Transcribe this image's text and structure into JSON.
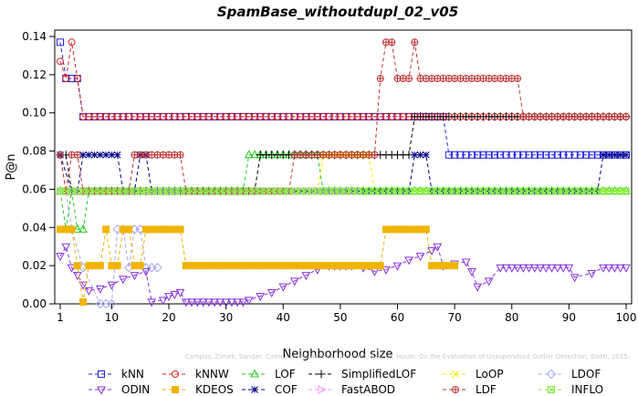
{
  "chart_data": {
    "type": "line",
    "title": "SpamBase_withoutdupl_02_v05",
    "xlabel": "Neighborhood size",
    "ylabel": "P@n",
    "xlim": [
      1,
      100
    ],
    "ylim": [
      0,
      0.14
    ],
    "xticks": [
      1,
      10,
      20,
      30,
      40,
      50,
      60,
      70,
      80,
      90,
      100
    ],
    "yticks": [
      0,
      0.02,
      0.04,
      0.06,
      0.08,
      0.1,
      0.12,
      0.14
    ],
    "ytick_labels": [
      "0.00",
      "0.02",
      "0.04",
      "0.06",
      "0.08",
      "0.10",
      "0.12",
      "0.14"
    ],
    "grid": false,
    "legend_position": "bottom",
    "watermark": "Campos, Zimek, Sander, Campello, Micenkova, Schubert, Assent, Houle: On the Evaluation of Unsupervised Outlier Detection, DAMI, 2015.",
    "series": [
      {
        "name": "kNN",
        "color": "#2222dd",
        "marker": "square",
        "points": [
          [
            1,
            0.137
          ],
          [
            2,
            0.118
          ],
          [
            3,
            0.118
          ],
          [
            4,
            0.118
          ],
          [
            5,
            0.098
          ],
          [
            68,
            0.098
          ],
          [
            69,
            0.078
          ],
          [
            99,
            0.078
          ],
          [
            100,
            0.078
          ]
        ]
      },
      {
        "name": "kNNW",
        "color": "#dd2222",
        "marker": "circle",
        "points": [
          [
            1,
            0.127
          ],
          [
            2,
            0.118
          ],
          [
            3,
            0.137
          ],
          [
            4,
            0.118
          ],
          [
            5,
            0.098
          ],
          [
            100,
            0.098
          ]
        ]
      },
      {
        "name": "LOF",
        "color": "#22cc22",
        "marker": "triangle-up",
        "points": [
          [
            1,
            0.059
          ],
          [
            2,
            0.039
          ],
          [
            3,
            0.059
          ],
          [
            4,
            0.039
          ],
          [
            5,
            0.039
          ],
          [
            6,
            0.059
          ],
          [
            33,
            0.059
          ],
          [
            34,
            0.078
          ],
          [
            46,
            0.078
          ],
          [
            47,
            0.059
          ],
          [
            100,
            0.059
          ]
        ]
      },
      {
        "name": "SimplifiedLOF",
        "color": "#000000",
        "marker": "plus",
        "points": [
          [
            1,
            0.078
          ],
          [
            2,
            0.078
          ],
          [
            3,
            0.059
          ],
          [
            35,
            0.059
          ],
          [
            36,
            0.078
          ],
          [
            62,
            0.078
          ],
          [
            63,
            0.098
          ],
          [
            100,
            0.098
          ]
        ]
      },
      {
        "name": "LoOP",
        "color": "#eeee00",
        "marker": "cross",
        "points": [
          [
            1,
            0.078
          ],
          [
            2,
            0.059
          ],
          [
            46,
            0.059
          ],
          [
            47,
            0.078
          ],
          [
            55,
            0.078
          ],
          [
            56,
            0.059
          ],
          [
            100,
            0.059
          ]
        ]
      },
      {
        "name": "LDOF",
        "color": "#aaaaee",
        "marker": "diamond",
        "points": [
          [
            1,
            0.078
          ],
          [
            3,
            0.039
          ],
          [
            5,
            0.019
          ],
          [
            8,
            0.0
          ],
          [
            10,
            0.0
          ],
          [
            11,
            0.039
          ],
          [
            12,
            0.039
          ],
          [
            13,
            0.019
          ],
          [
            14,
            0.039
          ],
          [
            15,
            0.039
          ],
          [
            16,
            0.019
          ],
          [
            18,
            0.019
          ]
        ]
      },
      {
        "name": "ODIN",
        "color": "#8833dd",
        "marker": "triangle-down",
        "points": [
          [
            1,
            0.025
          ],
          [
            2,
            0.03
          ],
          [
            3,
            0.019
          ],
          [
            4,
            0.015
          ],
          [
            5,
            0.01
          ],
          [
            6,
            0.007
          ],
          [
            8,
            0.008
          ],
          [
            10,
            0.01
          ],
          [
            12,
            0.013
          ],
          [
            14,
            0.015
          ],
          [
            16,
            0.017
          ],
          [
            17,
            0.001
          ],
          [
            19,
            0.002
          ],
          [
            20,
            0.004
          ],
          [
            21,
            0.005
          ],
          [
            22,
            0.006
          ],
          [
            23,
            0.001
          ],
          [
            33,
            0.001
          ],
          [
            34,
            0.002
          ],
          [
            36,
            0.004
          ],
          [
            38,
            0.006
          ],
          [
            40,
            0.009
          ],
          [
            42,
            0.012
          ],
          [
            44,
            0.015
          ],
          [
            46,
            0.018
          ],
          [
            48,
            0.02
          ],
          [
            52,
            0.02
          ],
          [
            54,
            0.019
          ],
          [
            56,
            0.017
          ],
          [
            58,
            0.018
          ],
          [
            60,
            0.02
          ],
          [
            62,
            0.023
          ],
          [
            64,
            0.025
          ],
          [
            66,
            0.028
          ],
          [
            67,
            0.03
          ],
          [
            68,
            0.02
          ],
          [
            70,
            0.021
          ],
          [
            72,
            0.022
          ],
          [
            73,
            0.017
          ],
          [
            74,
            0.009
          ],
          [
            76,
            0.012
          ],
          [
            78,
            0.019
          ],
          [
            90,
            0.019
          ],
          [
            91,
            0.014
          ],
          [
            94,
            0.016
          ],
          [
            96,
            0.019
          ],
          [
            100,
            0.019
          ]
        ]
      },
      {
        "name": "KDEOS",
        "color": "#f0b400",
        "marker": "square-filled",
        "points": [
          [
            1,
            0.039
          ],
          [
            2,
            0.039
          ],
          [
            3,
            0.039
          ],
          [
            4,
            0.02
          ],
          [
            5,
            0.001
          ],
          [
            6,
            0.02
          ],
          [
            7,
            0.02
          ],
          [
            8,
            0.02
          ],
          [
            9,
            0.039
          ],
          [
            10,
            0.02
          ],
          [
            11,
            0.02
          ],
          [
            12,
            0.039
          ],
          [
            13,
            0.039
          ],
          [
            14,
            0.02
          ],
          [
            15,
            0.02
          ],
          [
            16,
            0.039
          ],
          [
            17,
            0.039
          ],
          [
            18,
            0.039
          ],
          [
            19,
            0.039
          ],
          [
            20,
            0.039
          ],
          [
            21,
            0.039
          ],
          [
            22,
            0.039
          ],
          [
            23,
            0.02
          ],
          [
            57,
            0.02
          ],
          [
            58,
            0.039
          ],
          [
            65,
            0.039
          ],
          [
            66,
            0.02
          ],
          [
            70,
            0.02
          ]
        ]
      },
      {
        "name": "COF",
        "color": "#000088",
        "marker": "asterisk",
        "points": [
          [
            1,
            0.078
          ],
          [
            3,
            0.059
          ],
          [
            4,
            0.059
          ],
          [
            5,
            0.078
          ],
          [
            6,
            0.078
          ],
          [
            11,
            0.078
          ],
          [
            12,
            0.059
          ],
          [
            14,
            0.059
          ],
          [
            15,
            0.078
          ],
          [
            16,
            0.078
          ],
          [
            17,
            0.059
          ],
          [
            62,
            0.059
          ],
          [
            63,
            0.078
          ],
          [
            64,
            0.078
          ],
          [
            65,
            0.078
          ],
          [
            66,
            0.059
          ],
          [
            95,
            0.059
          ],
          [
            96,
            0.078
          ],
          [
            100,
            0.078
          ]
        ]
      },
      {
        "name": "FastABOD",
        "color": "#ff99ff",
        "marker": "triangle-right",
        "points": [
          [
            1,
            0.059
          ],
          [
            45,
            0.059
          ],
          [
            46,
            0.059
          ],
          [
            47,
            0.059
          ],
          [
            48,
            0.059
          ],
          [
            49,
            0.059
          ],
          [
            50,
            0.059
          ],
          [
            51,
            0.059
          ],
          [
            52,
            0.059
          ],
          [
            53,
            0.059
          ]
        ]
      },
      {
        "name": "LDF",
        "color": "#bb3333",
        "marker": "circle-plus",
        "points": [
          [
            1,
            0.078
          ],
          [
            2,
            0.059
          ],
          [
            3,
            0.078
          ],
          [
            4,
            0.078
          ],
          [
            5,
            0.059
          ],
          [
            13,
            0.059
          ],
          [
            14,
            0.078
          ],
          [
            22,
            0.078
          ],
          [
            23,
            0.059
          ],
          [
            41,
            0.059
          ],
          [
            42,
            0.078
          ],
          [
            56,
            0.078
          ],
          [
            57,
            0.118
          ],
          [
            58,
            0.137
          ],
          [
            59,
            0.137
          ],
          [
            60,
            0.118
          ],
          [
            62,
            0.118
          ],
          [
            63,
            0.137
          ],
          [
            64,
            0.118
          ],
          [
            81,
            0.118
          ],
          [
            82,
            0.098
          ],
          [
            100,
            0.098
          ]
        ]
      },
      {
        "name": "INFLO",
        "color": "#88ee44",
        "marker": "square-x",
        "points": [
          [
            1,
            0.059
          ],
          [
            100,
            0.059
          ]
        ]
      }
    ]
  }
}
